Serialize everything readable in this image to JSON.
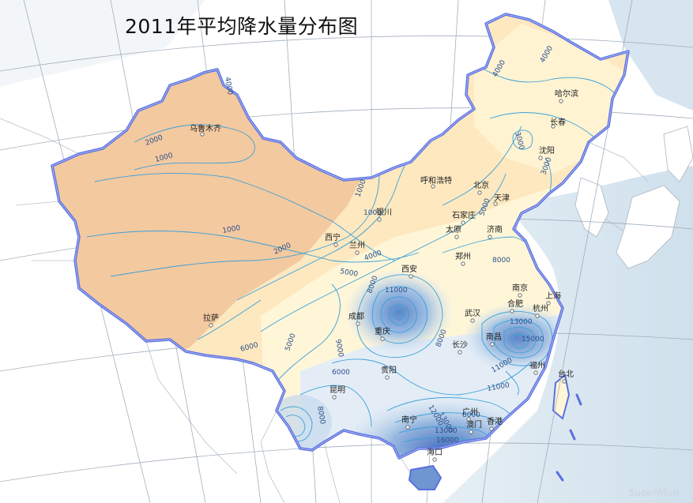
{
  "map": {
    "title": "2011年平均降水量分布图",
    "watermark": "SuperMap",
    "colors": {
      "sea": "#dbe8f0",
      "land_outside": "#ffffff",
      "border": "#5b6fe0",
      "dry": "#f3c9a0",
      "mid": "#fde8c0",
      "moist": "#fff6d8",
      "wet": "#d4e4f2",
      "very_wet": "#7fa6d8",
      "isoline": "#3aa0d8"
    },
    "cities": [
      {
        "name": "乌鲁木齐"
      },
      {
        "name": "哈尔滨"
      },
      {
        "name": "长春"
      },
      {
        "name": "沈阳"
      },
      {
        "name": "呼和浩特"
      },
      {
        "name": "北京"
      },
      {
        "name": "天津"
      },
      {
        "name": "银川"
      },
      {
        "name": "石家庄"
      },
      {
        "name": "太原"
      },
      {
        "name": "济南"
      },
      {
        "name": "西宁"
      },
      {
        "name": "兰州"
      },
      {
        "name": "郑州"
      },
      {
        "name": "西安"
      },
      {
        "name": "南京"
      },
      {
        "name": "上海"
      },
      {
        "name": "合肥"
      },
      {
        "name": "杭州"
      },
      {
        "name": "武汉"
      },
      {
        "name": "成都"
      },
      {
        "name": "重庆"
      },
      {
        "name": "拉萨"
      },
      {
        "name": "南昌"
      },
      {
        "name": "长沙"
      },
      {
        "name": "福州"
      },
      {
        "name": "台北"
      },
      {
        "name": "贵阳"
      },
      {
        "name": "昆明"
      },
      {
        "name": "南宁"
      },
      {
        "name": "广州"
      },
      {
        "name": "澳门"
      },
      {
        "name": "香港"
      },
      {
        "name": "海口"
      }
    ],
    "isolines": [
      "2000",
      "1000",
      "1000",
      "1000",
      "2000",
      "3000",
      "4000",
      "4000",
      "4000",
      "3000",
      "1000",
      "4000",
      "5000",
      "5000",
      "6000",
      "8000",
      "8000",
      "11000",
      "9000",
      "8000",
      "6000",
      "5000",
      "8000",
      "8000",
      "11000",
      "13000",
      "13000",
      "15000",
      "11000",
      "12000",
      "13000",
      "16000"
    ]
  }
}
